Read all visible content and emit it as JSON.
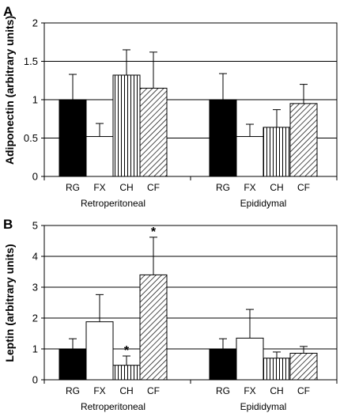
{
  "chart_data": [
    {
      "type": "bar",
      "panel_label": "A",
      "ylabel": "Adiponectin (arbitrary units)",
      "ylim": [
        0,
        2
      ],
      "yticks": [
        "0",
        "0.5",
        "1",
        "1.5",
        "2"
      ],
      "ytick_values": [
        0,
        0.5,
        1,
        1.5,
        2
      ],
      "gridlines": [
        0.5,
        1,
        1.5
      ],
      "groups": [
        {
          "name": "Retroperitoneal",
          "categories": [
            "RG",
            "FX",
            "CH",
            "CF"
          ],
          "values": [
            1.0,
            0.52,
            1.32,
            1.15
          ],
          "errors": [
            0.33,
            0.17,
            0.33,
            0.47
          ],
          "significant": [
            false,
            false,
            false,
            false
          ]
        },
        {
          "name": "Epididymal",
          "categories": [
            "RG",
            "FX",
            "CH",
            "CF"
          ],
          "values": [
            1.0,
            0.52,
            0.64,
            0.95
          ],
          "errors": [
            0.34,
            0.16,
            0.23,
            0.25
          ],
          "significant": [
            false,
            false,
            false,
            false
          ]
        }
      ],
      "significance_marker": "*"
    },
    {
      "type": "bar",
      "panel_label": "B",
      "ylabel": "Leptin (arbitrary units)",
      "ylim": [
        0,
        5
      ],
      "yticks": [
        "0",
        "1",
        "2",
        "3",
        "4",
        "5"
      ],
      "ytick_values": [
        0,
        1,
        2,
        3,
        4,
        5
      ],
      "gridlines": [
        1,
        2,
        3,
        4
      ],
      "groups": [
        {
          "name": "Retroperitoneal",
          "categories": [
            "RG",
            "FX",
            "CH",
            "CF"
          ],
          "values": [
            1.0,
            1.88,
            0.47,
            3.4
          ],
          "errors": [
            0.33,
            0.88,
            0.3,
            1.22
          ],
          "significant": [
            false,
            false,
            true,
            true
          ]
        },
        {
          "name": "Epididymal",
          "categories": [
            "RG",
            "FX",
            "CH",
            "CF"
          ],
          "values": [
            1.0,
            1.35,
            0.7,
            0.86
          ],
          "errors": [
            0.33,
            0.93,
            0.2,
            0.22
          ],
          "significant": [
            false,
            false,
            false,
            false
          ]
        }
      ],
      "significance_marker": "*"
    }
  ],
  "colors": {
    "RG": "#000000",
    "FX": "#ffffff",
    "CH": "vertical-stripes",
    "CF": "diagonal-hatch",
    "grid": "#000000"
  }
}
